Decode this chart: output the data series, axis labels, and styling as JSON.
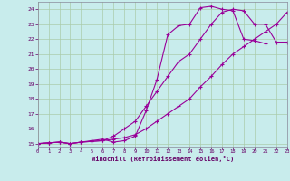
{
  "xlabel": "Windchill (Refroidissement éolien,°C)",
  "background_color": "#c8ecec",
  "grid_color": "#aaccaa",
  "line_color": "#990099",
  "xlim": [
    0,
    23
  ],
  "ylim": [
    14.8,
    24.5
  ],
  "xticks": [
    0,
    1,
    2,
    3,
    4,
    5,
    6,
    7,
    8,
    9,
    10,
    11,
    12,
    13,
    14,
    15,
    16,
    17,
    18,
    19,
    20,
    21,
    22,
    23
  ],
  "yticks": [
    15,
    16,
    17,
    18,
    19,
    20,
    21,
    22,
    23,
    24
  ],
  "lines": [
    {
      "x": [
        0,
        1,
        2,
        3,
        4,
        5,
        6,
        7,
        8,
        9,
        10,
        11,
        12,
        13,
        14,
        15,
        16,
        17,
        18,
        19,
        20,
        21
      ],
      "y": [
        15.0,
        15.05,
        15.1,
        15.0,
        15.1,
        15.2,
        15.3,
        15.1,
        15.2,
        15.5,
        17.2,
        19.3,
        22.3,
        22.9,
        23.0,
        24.1,
        24.2,
        24.0,
        23.9,
        22.0,
        21.9,
        21.7
      ]
    },
    {
      "x": [
        0,
        1,
        2,
        3,
        4,
        5,
        6,
        7,
        8,
        9,
        10,
        11,
        12,
        13,
        14,
        15,
        16,
        17,
        18,
        19,
        20,
        21,
        22,
        23
      ],
      "y": [
        15.0,
        15.05,
        15.1,
        15.0,
        15.1,
        15.15,
        15.2,
        15.5,
        16.0,
        16.5,
        17.5,
        18.5,
        19.5,
        20.5,
        21.0,
        22.0,
        23.0,
        23.8,
        24.0,
        23.9,
        23.0,
        23.0,
        21.8,
        21.8
      ]
    },
    {
      "x": [
        0,
        1,
        2,
        3,
        4,
        5,
        6,
        7,
        8,
        9,
        10,
        11,
        12,
        13,
        14,
        15,
        16,
        17,
        18,
        19,
        20,
        21,
        22,
        23
      ],
      "y": [
        15.0,
        15.05,
        15.1,
        15.0,
        15.1,
        15.15,
        15.2,
        15.3,
        15.4,
        15.6,
        16.0,
        16.5,
        17.0,
        17.5,
        18.0,
        18.8,
        19.5,
        20.3,
        21.0,
        21.5,
        22.0,
        22.5,
        23.0,
        23.8
      ]
    }
  ]
}
